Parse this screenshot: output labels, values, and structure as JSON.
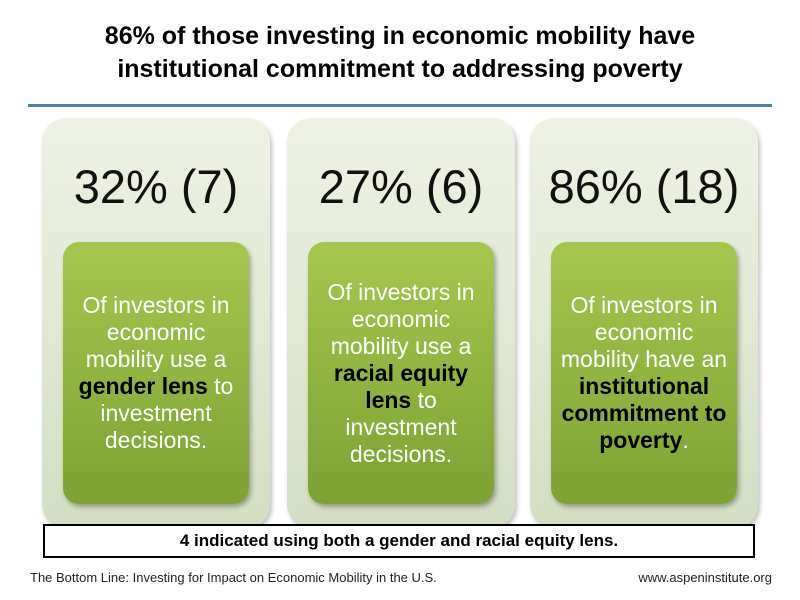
{
  "title": {
    "line1": "86% of those investing in economic mobility have",
    "line2": "institutional commitment to addressing poverty"
  },
  "colors": {
    "rule": "#4f81a6",
    "panel_bg": "#dfe7d2",
    "inner_green": "#8cb13e",
    "inner_text": "#ffffff",
    "emphasis_text": "#000000"
  },
  "panels": [
    {
      "stat": "32% (7)",
      "text_before": "Of investors in economic mobility use a ",
      "emphasis": "gender lens",
      "text_after": " to investment decisions."
    },
    {
      "stat": "27% (6)",
      "text_before": "Of investors in economic mobility use a ",
      "emphasis": "racial equity lens",
      "text_after": " to investment decisions."
    },
    {
      "stat": "86% (18)",
      "text_before": "Of investors in economic mobility have an ",
      "emphasis": "institutional commitment to poverty",
      "text_after": "."
    }
  ],
  "note": "4 indicated using both a gender and racial equity lens.",
  "footer": {
    "source": "The Bottom Line: Investing for Impact on Economic Mobility in the U.S.",
    "url": "www.aspeninstitute.org"
  }
}
